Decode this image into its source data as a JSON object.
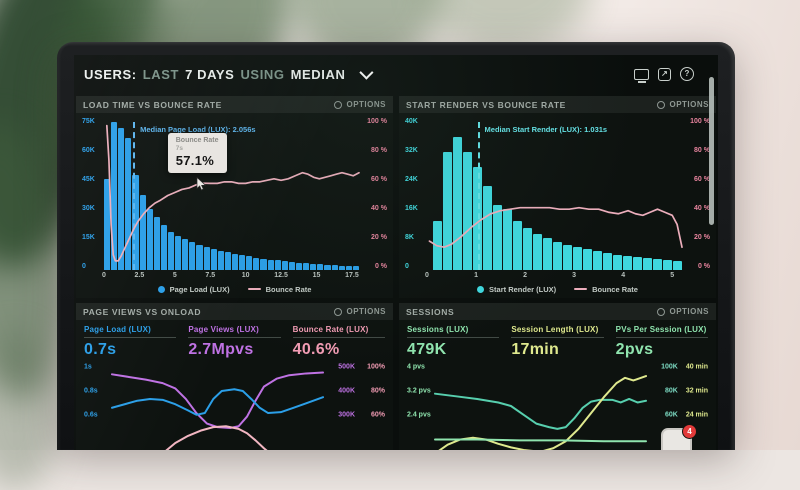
{
  "colors": {
    "screen_bg": "#0a0e0c",
    "panel_bg": "#0d120f",
    "panel_header_bg": "#1c211e",
    "blue": "#2b9fe8",
    "cyan": "#3fd8de",
    "pink_line": "#ecaebc",
    "pink_axis": "#e8849e",
    "purple": "#bf72e4",
    "pink_metric": "#f29cb4",
    "green": "#8fe4ae",
    "yellow": "#dfe98e",
    "teal": "#7ddcc4",
    "badge_red": "#e23a3a"
  },
  "header": {
    "title_prefix": "USERS:",
    "range_word": "LAST",
    "range_value": "7 DAYS",
    "using_word": "USING",
    "agg_value": "MEDIAN"
  },
  "header_icons": {
    "share_glyph": "↗",
    "help_glyph": "?"
  },
  "options_label": "OPTIONS",
  "chat_badge_count": "4",
  "chart_data": [
    {
      "id": "load-time-vs-bounce-rate",
      "type": "bar+line",
      "title": "LOAD TIME VS BOUNCE RATE",
      "bar_series": "Page Load (LUX)",
      "line_series": "Bounce Rate",
      "bar_color": "#2b9fe8",
      "line_color": "#ecaebc",
      "accent": "#5db6f0",
      "x_max": 18,
      "bin_width": 0.5,
      "y_left_max_k": 75,
      "y_left_labels": [
        "75K",
        "60K",
        "45K",
        "30K",
        "15K",
        "0"
      ],
      "y_right_labels": [
        "100 %",
        "80 %",
        "60 %",
        "40 %",
        "20 %",
        "0 %"
      ],
      "x_ticks": [
        0,
        2.5,
        5,
        7.5,
        10,
        12.5,
        15,
        17.5
      ],
      "bars_k": [
        45,
        73,
        70,
        65,
        47,
        37,
        30,
        26,
        22,
        19,
        17,
        15.5,
        14,
        12.5,
        11.5,
        10.5,
        9.5,
        8.7,
        8,
        7.3,
        6.7,
        6.1,
        5.6,
        5.1,
        4.7,
        4.3,
        3.9,
        3.6,
        3.3,
        3,
        2.8,
        2.5,
        2.3,
        2.1,
        1.9,
        1.8
      ],
      "median_s": 2.056,
      "median_label": "Median Page Load (LUX): 2.056s",
      "line_points": [
        [
          0.2,
          95
        ],
        [
          0.35,
          72
        ],
        [
          0.5,
          30
        ],
        [
          0.65,
          10
        ],
        [
          0.8,
          6
        ],
        [
          1,
          6
        ],
        [
          1.2,
          9
        ],
        [
          1.5,
          15
        ],
        [
          1.8,
          21
        ],
        [
          2.1,
          27
        ],
        [
          2.4,
          32
        ],
        [
          2.8,
          37
        ],
        [
          3.2,
          41
        ],
        [
          3.6,
          44
        ],
        [
          4,
          46
        ],
        [
          4.5,
          49
        ],
        [
          5,
          51
        ],
        [
          5.5,
          53
        ],
        [
          6,
          54
        ],
        [
          6.5,
          56
        ],
        [
          7,
          57.1
        ],
        [
          7.5,
          57
        ],
        [
          8,
          57
        ],
        [
          8.5,
          58
        ],
        [
          9,
          58
        ],
        [
          9.5,
          57
        ],
        [
          10,
          57
        ],
        [
          10.5,
          58
        ],
        [
          11,
          58
        ],
        [
          11.5,
          59
        ],
        [
          12,
          60
        ],
        [
          12.5,
          59
        ],
        [
          13,
          60
        ],
        [
          13.5,
          62
        ],
        [
          14,
          64
        ],
        [
          14.4,
          63
        ],
        [
          14.8,
          61
        ],
        [
          15.2,
          60
        ],
        [
          15.6,
          61
        ],
        [
          16,
          62
        ],
        [
          16.4,
          63
        ],
        [
          16.8,
          64
        ],
        [
          17.2,
          63
        ],
        [
          17.6,
          62
        ],
        [
          18,
          64
        ]
      ],
      "tooltip": {
        "series": "Bounce Rate",
        "x": "7s",
        "value": "57.1%"
      }
    },
    {
      "id": "start-render-vs-bounce-rate",
      "type": "bar+line",
      "title": "START RENDER VS BOUNCE RATE",
      "bar_series": "Start Render (LUX)",
      "line_series": "Bounce Rate",
      "bar_color": "#3fd8de",
      "line_color": "#ecaebc",
      "accent": "#64e2e6",
      "x_max": 5.2,
      "bin_width": 0.2,
      "bar_offset_pct": 2.5,
      "y_left_max_k": 40,
      "y_left_labels": [
        "40K",
        "32K",
        "24K",
        "16K",
        "8K",
        "0"
      ],
      "y_right_labels": [
        "100 %",
        "80 %",
        "60 %",
        "40 %",
        "20 %",
        "0 %"
      ],
      "x_ticks": [
        0,
        1,
        2,
        3,
        4,
        5
      ],
      "bars_k": [
        13,
        31,
        35,
        31,
        27,
        22,
        17,
        16,
        13,
        11,
        9.5,
        8.5,
        7.5,
        6.5,
        6,
        5.5,
        5,
        4.5,
        4,
        3.7,
        3.4,
        3.1,
        2.9,
        2.6,
        2.4
      ],
      "median_s": 1.031,
      "median_label": "Median Start Render (LUX): 1.031s",
      "line_points": [
        [
          0.05,
          19
        ],
        [
          0.2,
          16
        ],
        [
          0.35,
          15
        ],
        [
          0.5,
          17
        ],
        [
          0.7,
          22
        ],
        [
          0.9,
          28
        ],
        [
          1.1,
          33
        ],
        [
          1.3,
          37
        ],
        [
          1.5,
          39
        ],
        [
          1.7,
          40
        ],
        [
          1.9,
          41
        ],
        [
          2.1,
          41
        ],
        [
          2.3,
          41
        ],
        [
          2.5,
          41
        ],
        [
          2.7,
          40
        ],
        [
          2.9,
          40
        ],
        [
          3.1,
          41
        ],
        [
          3.3,
          40
        ],
        [
          3.5,
          40
        ],
        [
          3.7,
          38
        ],
        [
          3.9,
          37
        ],
        [
          4.1,
          39
        ],
        [
          4.25,
          37
        ],
        [
          4.4,
          36
        ],
        [
          4.55,
          38
        ],
        [
          4.7,
          40
        ],
        [
          4.85,
          38
        ],
        [
          5,
          36
        ],
        [
          5.1,
          30
        ],
        [
          5.2,
          15
        ]
      ]
    },
    {
      "id": "page-views-vs-onload",
      "type": "line",
      "title": "PAGE VIEWS VS ONLOAD",
      "metrics": [
        {
          "label": "Page Load (LUX)",
          "value": "0.7s",
          "color": "#2b9fe8"
        },
        {
          "label": "Page Views (LUX)",
          "value": "2.7Mpvs",
          "color": "#bf72e4"
        },
        {
          "label": "Bounce Rate (LUX)",
          "value": "40.6%",
          "color": "#f29cb4"
        }
      ],
      "y_left_labels": [
        "1s",
        "0.8s",
        "0.6s"
      ],
      "y_left_color": "#2b9fe8",
      "y_right_pairs": [
        [
          "500K",
          "100%"
        ],
        [
          "400K",
          "80%"
        ],
        [
          "300K",
          "60%"
        ]
      ],
      "y_right_colors": [
        "#bf72e4",
        "#f29cb4"
      ],
      "lines": [
        {
          "name": "Page Views (LUX)",
          "color": "#bf72e4",
          "points": [
            [
              0,
              14
            ],
            [
              8,
              17
            ],
            [
              16,
              20
            ],
            [
              24,
              24
            ],
            [
              30,
              30
            ],
            [
              35,
              42
            ],
            [
              40,
              58
            ],
            [
              45,
              70
            ],
            [
              50,
              74
            ],
            [
              56,
              75
            ],
            [
              60,
              73
            ],
            [
              64,
              62
            ],
            [
              68,
              44
            ],
            [
              72,
              28
            ],
            [
              78,
              19
            ],
            [
              84,
              15
            ],
            [
              92,
              13
            ],
            [
              100,
              12
            ]
          ]
        },
        {
          "name": "Page Load (LUX)",
          "color": "#2b9fe8",
          "points": [
            [
              0,
              52
            ],
            [
              6,
              48
            ],
            [
              12,
              44
            ],
            [
              18,
              42
            ],
            [
              24,
              43
            ],
            [
              30,
              48
            ],
            [
              36,
              55
            ],
            [
              40,
              60
            ],
            [
              44,
              58
            ],
            [
              48,
              42
            ],
            [
              52,
              33
            ],
            [
              58,
              31
            ],
            [
              62,
              33
            ],
            [
              66,
              42
            ],
            [
              70,
              52
            ],
            [
              74,
              58
            ],
            [
              80,
              57
            ],
            [
              86,
              52
            ],
            [
              92,
              47
            ],
            [
              100,
              40
            ]
          ]
        },
        {
          "name": "Bounce Rate (LUX)",
          "color": "#f2b6c2",
          "points": [
            [
              24,
              104
            ],
            [
              30,
              92
            ],
            [
              36,
              84
            ],
            [
              42,
              78
            ],
            [
              48,
              74
            ],
            [
              54,
              73
            ],
            [
              60,
              76
            ],
            [
              64,
              81
            ],
            [
              68,
              89
            ],
            [
              72,
              98
            ],
            [
              76,
              106
            ]
          ]
        }
      ]
    },
    {
      "id": "sessions",
      "type": "line",
      "title": "SESSIONS",
      "metrics": [
        {
          "label": "Sessions (LUX)",
          "value": "479K",
          "color": "#8fe4ae"
        },
        {
          "label": "Session Length (LUX)",
          "value": "17min",
          "color": "#dfe98e"
        },
        {
          "label": "PVs Per Session (LUX)",
          "value": "2pvs",
          "color": "#8fe4ae"
        }
      ],
      "y_left_labels": [
        "4 pvs",
        "3.2 pvs",
        "2.4 pvs"
      ],
      "y_left_color": "#8fe4ae",
      "y_right_pairs": [
        [
          "100K",
          "40 min"
        ],
        [
          "80K",
          "32 min"
        ],
        [
          "60K",
          "24 min"
        ]
      ],
      "y_right_colors": [
        "#7ddcc4",
        "#dfe98e"
      ],
      "lines": [
        {
          "name": "Sessions (LUX)",
          "color": "#57cfae",
          "points": [
            [
              0,
              36
            ],
            [
              10,
              39
            ],
            [
              20,
              42
            ],
            [
              30,
              46
            ],
            [
              36,
              50
            ],
            [
              42,
              60
            ],
            [
              48,
              70
            ],
            [
              54,
              74
            ],
            [
              58,
              76
            ],
            [
              62,
              74
            ],
            [
              66,
              64
            ],
            [
              70,
              52
            ],
            [
              74,
              45
            ],
            [
              78,
              43
            ],
            [
              84,
              43
            ],
            [
              88,
              46
            ],
            [
              92,
              42
            ],
            [
              96,
              46
            ],
            [
              100,
              44
            ]
          ]
        },
        {
          "name": "Session Length (LUX)",
          "color": "#dfe98e",
          "points": [
            [
              0,
              104
            ],
            [
              6,
              94
            ],
            [
              12,
              88
            ],
            [
              18,
              86
            ],
            [
              24,
              88
            ],
            [
              30,
              93
            ],
            [
              36,
              97
            ],
            [
              42,
              100
            ],
            [
              50,
              102
            ],
            [
              56,
              98
            ],
            [
              62,
              90
            ],
            [
              68,
              76
            ],
            [
              74,
              58
            ],
            [
              80,
              40
            ],
            [
              86,
              24
            ],
            [
              90,
              18
            ],
            [
              94,
              21
            ],
            [
              100,
              16
            ]
          ]
        },
        {
          "name": "PVs Per Session (LUX)",
          "color": "#8fe4ae",
          "points": [
            [
              0,
              88
            ],
            [
              20,
              88
            ],
            [
              40,
              89
            ],
            [
              60,
              89
            ],
            [
              80,
              90
            ],
            [
              100,
              90
            ]
          ]
        }
      ]
    }
  ]
}
